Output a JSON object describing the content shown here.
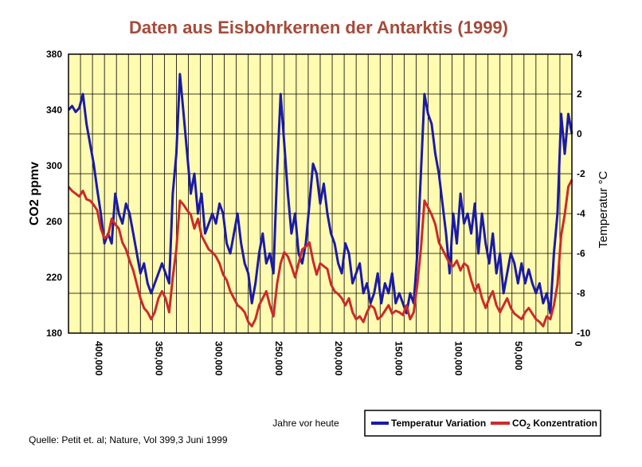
{
  "chart_data": {
    "type": "line",
    "title": "Daten aus Eisbohrkernen der Antarktis (1999)",
    "xlabel": "Jahre vor heute",
    "ylabel": "CO2 ppmv",
    "y2label": "Temperatur °C",
    "xlim": [
      420000,
      0
    ],
    "ylim": [
      180,
      380
    ],
    "y2lim": [
      -10,
      4
    ],
    "x_ticks": [
      {
        "value": 400000,
        "label": "400,000"
      },
      {
        "value": 350000,
        "label": "350,000"
      },
      {
        "value": 300000,
        "label": "300,000"
      },
      {
        "value": 250000,
        "label": "250,000"
      },
      {
        "value": 200000,
        "label": "200,000"
      },
      {
        "value": 150000,
        "label": "150,000"
      },
      {
        "value": 100000,
        "label": "100,000"
      },
      {
        "value": 50000,
        "label": "50,000"
      },
      {
        "value": 0,
        "label": "0"
      }
    ],
    "y_ticks": [
      {
        "value": 380,
        "label": "380"
      },
      {
        "value": 340,
        "label": "340"
      },
      {
        "value": 300,
        "label": "300"
      },
      {
        "value": 260,
        "label": "260"
      },
      {
        "value": 220,
        "label": "220"
      },
      {
        "value": 180,
        "label": "180"
      }
    ],
    "y2_ticks": [
      {
        "value": 4,
        "label": "4"
      },
      {
        "value": 2,
        "label": "2"
      },
      {
        "value": 0,
        "label": "0"
      },
      {
        "value": -2,
        "label": "-2"
      },
      {
        "value": -4,
        "label": "-4"
      },
      {
        "value": -6,
        "label": "-6"
      },
      {
        "value": -8,
        "label": "-8"
      },
      {
        "value": -10,
        "label": "-10"
      }
    ],
    "grid": true,
    "legend_position": "bottom-right",
    "background_color": "#fffbb0",
    "title_color": "#a54b3a",
    "series": [
      {
        "name": "Temperatur  Variation",
        "color": "#1a1aa8",
        "axis": "right",
        "x": [
          420000,
          417000,
          414000,
          411000,
          408000,
          405000,
          402000,
          399000,
          396000,
          393000,
          390000,
          387000,
          384000,
          381000,
          378000,
          375000,
          372000,
          369000,
          366000,
          363000,
          360000,
          357000,
          354000,
          351000,
          348000,
          345000,
          342000,
          339000,
          336000,
          333000,
          330000,
          327000,
          324000,
          321000,
          318000,
          315000,
          312000,
          309000,
          306000,
          303000,
          300000,
          297000,
          294000,
          291000,
          288000,
          285000,
          282000,
          279000,
          276000,
          273000,
          270000,
          267000,
          264000,
          261000,
          258000,
          255000,
          252000,
          249000,
          246000,
          243000,
          240000,
          237000,
          234000,
          231000,
          228000,
          225000,
          222000,
          219000,
          216000,
          213000,
          210000,
          207000,
          204000,
          201000,
          198000,
          195000,
          192000,
          189000,
          186000,
          183000,
          180000,
          177000,
          174000,
          171000,
          168000,
          165000,
          162000,
          159000,
          156000,
          153000,
          150000,
          147000,
          144000,
          141000,
          138000,
          135000,
          132000,
          129000,
          126000,
          123000,
          120000,
          117000,
          114000,
          111000,
          108000,
          105000,
          102000,
          99000,
          96000,
          93000,
          90000,
          87000,
          84000,
          81000,
          78000,
          75000,
          72000,
          69000,
          66000,
          63000,
          60000,
          57000,
          54000,
          51000,
          48000,
          45000,
          42000,
          39000,
          36000,
          33000,
          30000,
          27000,
          24000,
          21000,
          18000,
          15000,
          12000,
          9000,
          6000,
          3000,
          0
        ],
        "values": [
          1.2,
          1.4,
          1.1,
          1.3,
          2.0,
          0.5,
          -0.5,
          -1.5,
          -2.8,
          -4.0,
          -5.5,
          -5.0,
          -5.5,
          -3.0,
          -4.0,
          -4.5,
          -3.5,
          -4.0,
          -5.0,
          -6.0,
          -7.0,
          -6.5,
          -7.5,
          -8.0,
          -7.5,
          -7.0,
          -6.5,
          -7.0,
          -7.5,
          -3.0,
          -1.0,
          3.0,
          1.0,
          -1.0,
          -3.0,
          -2.0,
          -4.0,
          -3.0,
          -5.0,
          -4.5,
          -4.0,
          -4.5,
          -3.5,
          -4.0,
          -5.5,
          -6.0,
          -5.0,
          -4.0,
          -5.5,
          -6.5,
          -7.0,
          -8.5,
          -7.5,
          -6.0,
          -5.0,
          -6.5,
          -6.0,
          -7.0,
          -2.0,
          2.0,
          -0.5,
          -3.0,
          -5.0,
          -4.0,
          -6.0,
          -6.5,
          -5.5,
          -3.5,
          -1.5,
          -2.0,
          -3.5,
          -2.5,
          -4.0,
          -5.0,
          -5.5,
          -6.5,
          -7.0,
          -5.5,
          -6.0,
          -7.5,
          -7.0,
          -6.5,
          -8.0,
          -7.5,
          -8.5,
          -8.0,
          -7.0,
          -8.5,
          -7.5,
          -8.0,
          -7.0,
          -8.5,
          -8.0,
          -8.5,
          -9.0,
          -8.0,
          -8.5,
          -6.0,
          -2.0,
          2.0,
          1.0,
          0.5,
          -1.0,
          -2.0,
          -3.5,
          -5.0,
          -7.0,
          -4.0,
          -5.5,
          -3.0,
          -4.5,
          -4.0,
          -5.0,
          -3.5,
          -6.0,
          -4.0,
          -5.5,
          -6.5,
          -5.0,
          -7.0,
          -6.0,
          -8.0,
          -7.0,
          -6.0,
          -6.5,
          -7.5,
          -6.5,
          -7.5,
          -6.8,
          -7.5,
          -8.0,
          -7.5,
          -8.5,
          -8.0,
          -9.0,
          -6.0,
          -4.0,
          1.0,
          -1.0,
          1.0,
          0.0
        ]
      },
      {
        "name": "CO2 Konzentration",
        "color": "#cc2a2a",
        "axis": "left",
        "x": [
          420000,
          417000,
          414000,
          411000,
          408000,
          405000,
          402000,
          399000,
          396000,
          393000,
          390000,
          387000,
          384000,
          381000,
          378000,
          375000,
          372000,
          369000,
          366000,
          363000,
          360000,
          357000,
          354000,
          351000,
          348000,
          345000,
          342000,
          339000,
          336000,
          333000,
          330000,
          327000,
          324000,
          321000,
          318000,
          315000,
          312000,
          309000,
          306000,
          303000,
          300000,
          297000,
          294000,
          291000,
          288000,
          285000,
          282000,
          279000,
          276000,
          273000,
          270000,
          267000,
          264000,
          261000,
          258000,
          255000,
          252000,
          249000,
          246000,
          243000,
          240000,
          237000,
          234000,
          231000,
          228000,
          225000,
          222000,
          219000,
          216000,
          213000,
          210000,
          207000,
          204000,
          201000,
          198000,
          195000,
          192000,
          189000,
          186000,
          183000,
          180000,
          177000,
          174000,
          171000,
          168000,
          165000,
          162000,
          159000,
          156000,
          153000,
          150000,
          147000,
          144000,
          141000,
          138000,
          135000,
          132000,
          129000,
          126000,
          123000,
          120000,
          117000,
          114000,
          111000,
          108000,
          105000,
          102000,
          99000,
          96000,
          93000,
          90000,
          87000,
          84000,
          81000,
          78000,
          75000,
          72000,
          69000,
          66000,
          63000,
          60000,
          57000,
          54000,
          51000,
          48000,
          45000,
          42000,
          39000,
          36000,
          33000,
          30000,
          27000,
          24000,
          21000,
          18000,
          15000,
          12000,
          9000,
          6000,
          3000,
          0
        ],
        "values": [
          285,
          282,
          280,
          278,
          282,
          276,
          275,
          272,
          268,
          255,
          248,
          250,
          262,
          258,
          255,
          245,
          240,
          232,
          225,
          215,
          205,
          198,
          195,
          190,
          195,
          205,
          210,
          205,
          195,
          220,
          240,
          275,
          272,
          268,
          265,
          255,
          262,
          250,
          245,
          240,
          238,
          235,
          230,
          222,
          218,
          210,
          205,
          200,
          198,
          195,
          188,
          185,
          190,
          200,
          205,
          210,
          200,
          192,
          215,
          230,
          238,
          235,
          228,
          220,
          230,
          240,
          242,
          245,
          232,
          222,
          230,
          228,
          226,
          215,
          210,
          208,
          205,
          200,
          205,
          195,
          190,
          192,
          188,
          195,
          200,
          198,
          190,
          192,
          196,
          200,
          194,
          196,
          195,
          193,
          200,
          190,
          195,
          215,
          240,
          275,
          270,
          265,
          258,
          245,
          240,
          235,
          230,
          228,
          232,
          225,
          230,
          228,
          218,
          210,
          215,
          205,
          198,
          205,
          210,
          200,
          195,
          200,
          205,
          198,
          194,
          192,
          190,
          195,
          198,
          194,
          190,
          188,
          185,
          192,
          190,
          200,
          215,
          250,
          265,
          285,
          290
        ]
      }
    ]
  },
  "legend_title": "Jahre vor heute",
  "legend": {
    "temperature": "Temperatur  Variation",
    "co2_prefix": "CO",
    "co2_sub": "2",
    "co2_suffix": " Konzentration"
  },
  "source": "Quelle: Petit et. al;  Nature, Vol 399,3 Juni 1999"
}
